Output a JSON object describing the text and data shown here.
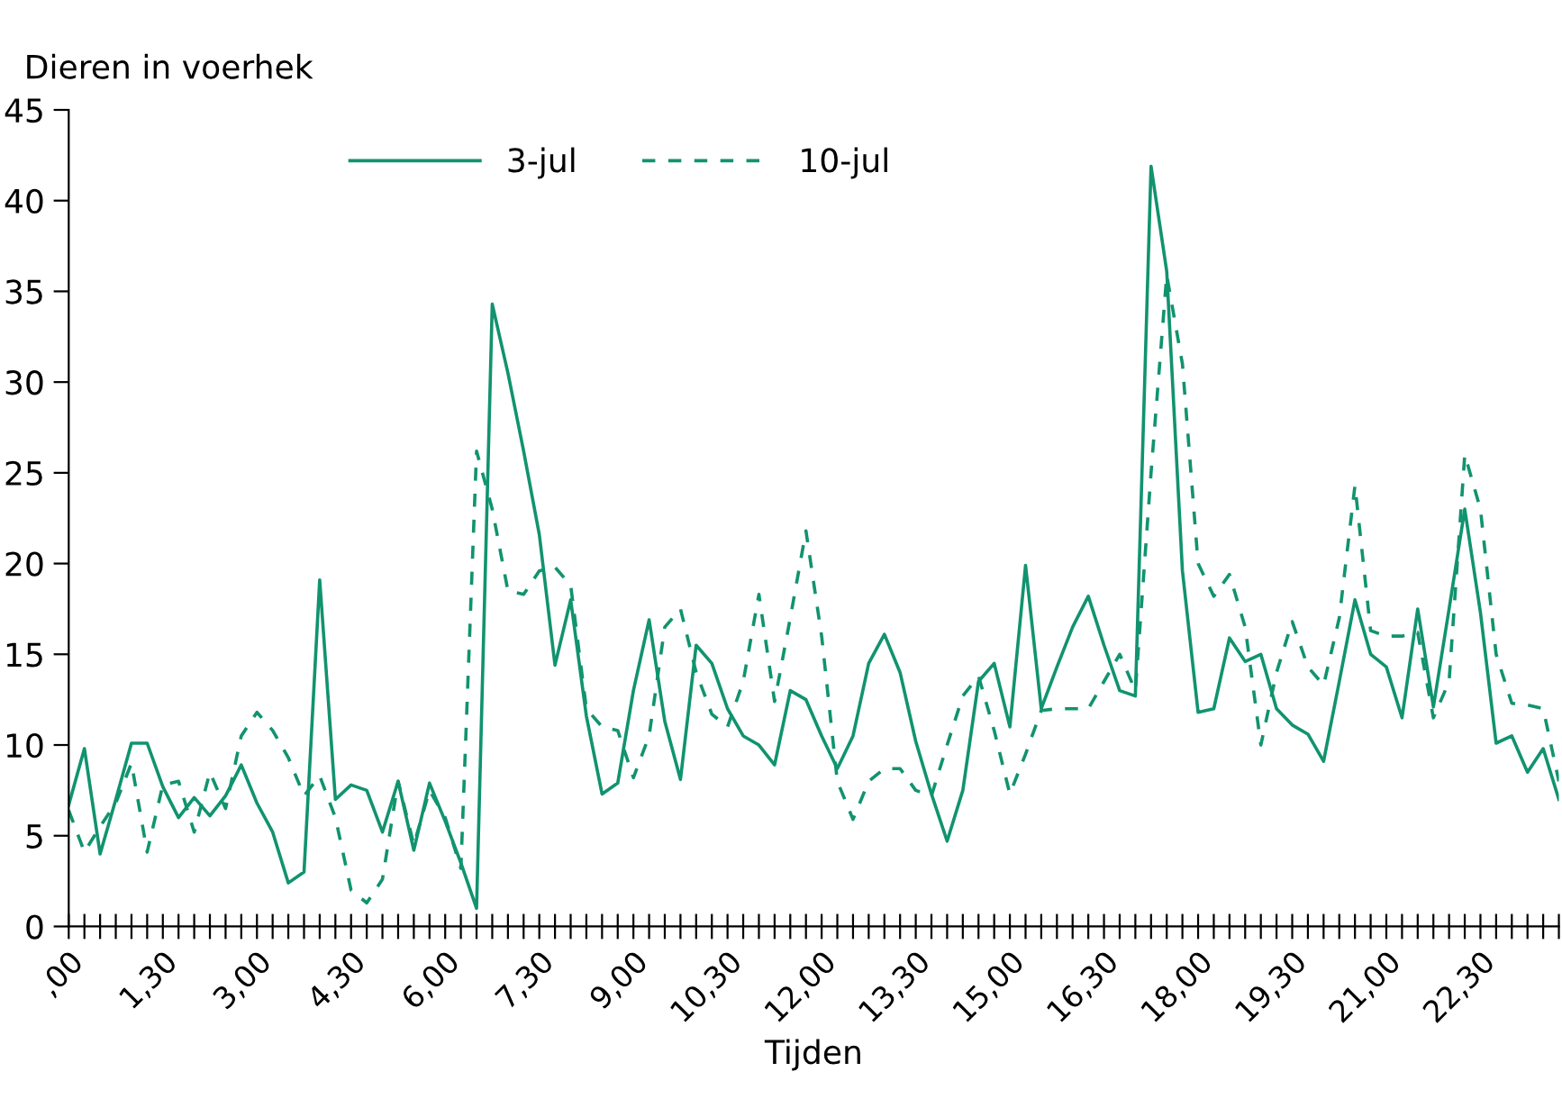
{
  "chart_data": {
    "type": "line",
    "xlabel": "Tijden",
    "ylabel": "Dieren in voerhek",
    "categories": [
      ",00",
      null,
      null,
      null,
      null,
      null,
      "1,30",
      null,
      null,
      null,
      null,
      null,
      "3,00",
      null,
      null,
      null,
      null,
      null,
      "4,30",
      null,
      null,
      null,
      null,
      null,
      "6,00",
      null,
      null,
      null,
      null,
      null,
      "7,30",
      null,
      null,
      null,
      null,
      null,
      "9,00",
      null,
      null,
      null,
      null,
      null,
      "10,30",
      null,
      null,
      null,
      null,
      null,
      "12,00",
      null,
      null,
      null,
      null,
      null,
      "13,30",
      null,
      null,
      null,
      null,
      null,
      "15,00",
      null,
      null,
      null,
      null,
      null,
      "16,30",
      null,
      null,
      null,
      null,
      null,
      "18,00",
      null,
      null,
      null,
      null,
      null,
      "19,30",
      null,
      null,
      null,
      null,
      null,
      "21,00",
      null,
      null,
      null,
      null,
      null,
      "22,30",
      null,
      null,
      null,
      null,
      null
    ],
    "series": [
      {
        "name": "3-jul",
        "color": "#11936f",
        "line_style": "solid",
        "values": [
          6.7,
          9.8,
          4.0,
          7.0,
          10.1,
          10.1,
          7.7,
          6.0,
          7.1,
          6.1,
          7.2,
          8.9,
          6.8,
          5.2,
          2.4,
          3.0,
          19.1,
          7.0,
          7.8,
          7.5,
          5.2,
          8.0,
          4.2,
          7.9,
          5.8,
          3.5,
          1.0,
          34.3,
          30.5,
          26.2,
          21.6,
          14.4,
          18.0,
          11.6,
          7.3,
          7.9,
          13.0,
          16.9,
          11.3,
          8.1,
          15.5,
          14.5,
          12.0,
          10.5,
          10.0,
          8.9,
          13.0,
          12.5,
          10.5,
          8.7,
          10.5,
          14.5,
          16.1,
          14.0,
          10.2,
          7.3,
          4.7,
          7.5,
          13.5,
          14.5,
          11.0,
          19.9,
          12.0,
          14.3,
          16.5,
          18.2,
          15.5,
          13.0,
          12.7,
          41.9,
          36.1,
          19.6,
          11.8,
          12.0,
          15.9,
          14.6,
          15.0,
          12.0,
          11.1,
          10.6,
          9.1,
          13.5,
          18.0,
          15.0,
          14.3,
          11.5,
          17.5,
          12.1,
          17.5,
          23.0,
          17.3,
          10.1,
          10.5,
          8.5,
          9.8,
          7.0
        ]
      },
      {
        "name": "10-jul",
        "color": "#11936f",
        "line_style": "dashed",
        "values": [
          6.4,
          4.1,
          5.5,
          6.8,
          9.0,
          4.1,
          7.8,
          8.0,
          5.2,
          8.5,
          6.5,
          10.5,
          11.8,
          10.8,
          9.3,
          7.2,
          8.3,
          6.0,
          2.0,
          1.3,
          2.6,
          8.0,
          4.5,
          7.5,
          6.0,
          3.2,
          26.2,
          23.0,
          18.5,
          18.3,
          19.6,
          19.8,
          18.8,
          12.0,
          11.0,
          10.8,
          8.2,
          10.5,
          16.5,
          17.5,
          14.0,
          11.7,
          11.0,
          13.5,
          18.3,
          12.4,
          17.0,
          21.8,
          16.0,
          8.0,
          5.9,
          8.0,
          8.7,
          8.7,
          7.5,
          7.2,
          10.0,
          12.7,
          13.8,
          10.8,
          7.3,
          9.5,
          11.9,
          12.0,
          12.0,
          12.0,
          13.5,
          15.0,
          13.0,
          25.0,
          35.9,
          31.0,
          20.0,
          18.2,
          19.4,
          16.5,
          10.0,
          14.0,
          16.8,
          14.3,
          13.3,
          17.0,
          24.3,
          16.3,
          16.0,
          16.0,
          16.2,
          11.5,
          13.5,
          26.0,
          23.0,
          15.0,
          12.3,
          12.2,
          12.0,
          8.0
        ]
      }
    ],
    "ylim": [
      0,
      45
    ],
    "yticks": [
      0,
      5,
      10,
      15,
      20,
      25,
      30,
      35,
      40,
      45
    ],
    "grid": false,
    "legend": "top",
    "marker": "none"
  }
}
